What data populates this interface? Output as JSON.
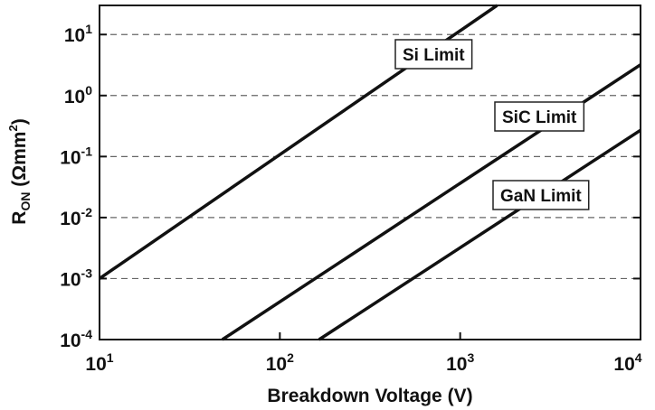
{
  "chart_data": {
    "type": "line",
    "xscale": "log",
    "yscale": "log",
    "xlim": [
      10,
      10000
    ],
    "ylim": [
      0.0001,
      30
    ],
    "grid": "horizontal-dashed",
    "xlabel": "Breakdown Voltage (V)",
    "ylabel": {
      "main": "R",
      "sub": "ON",
      "unit_pre": " (Ωmm",
      "unit_sup": "2",
      "unit_post": ")"
    },
    "x_ticks": [
      {
        "value": 10,
        "base": "10",
        "exp": "1"
      },
      {
        "value": 100,
        "base": "10",
        "exp": "2"
      },
      {
        "value": 1000,
        "base": "10",
        "exp": "3"
      },
      {
        "value": 10000,
        "base": "10",
        "exp": "4"
      }
    ],
    "y_ticks": [
      {
        "value": 10,
        "base": "10",
        "exp": "1"
      },
      {
        "value": 1,
        "base": "10",
        "exp": "0"
      },
      {
        "value": 0.1,
        "base": "10",
        "exp": "-1"
      },
      {
        "value": 0.01,
        "base": "10",
        "exp": "-2"
      },
      {
        "value": 0.001,
        "base": "10",
        "exp": "-3"
      },
      {
        "value": 0.0001,
        "base": "10",
        "exp": "-4"
      }
    ],
    "series": [
      {
        "name": "Si Limit",
        "x": [
          10,
          1600
        ],
        "y": [
          0.001,
          30
        ]
      },
      {
        "name": "SiC Limit",
        "x": [
          48,
          10000
        ],
        "y": [
          0.0001,
          3.2
        ]
      },
      {
        "name": "GaN Limit",
        "x": [
          165,
          10000
        ],
        "y": [
          0.0001,
          0.27
        ]
      }
    ],
    "line_color": "#111111"
  }
}
